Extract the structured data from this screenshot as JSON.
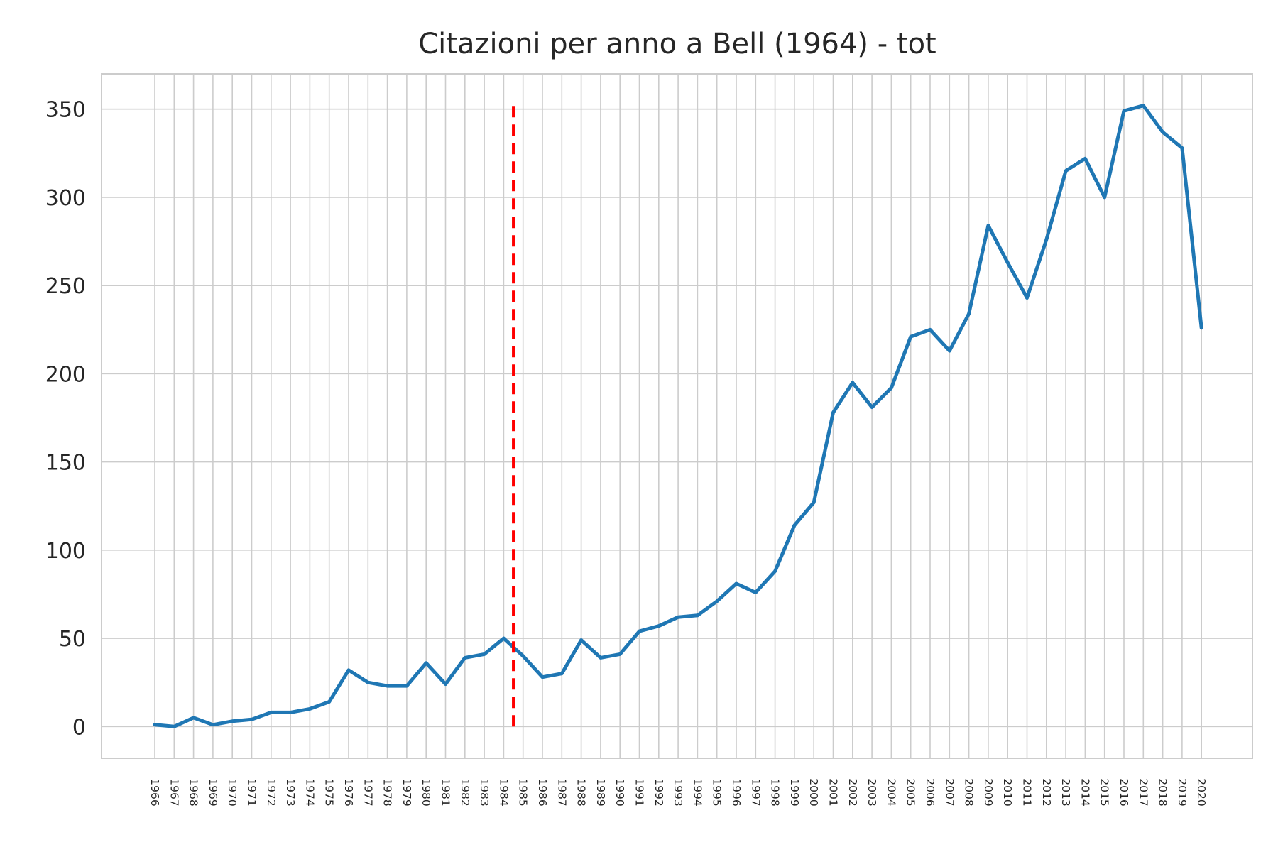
{
  "chart_data": {
    "type": "line",
    "title": "Citazioni per anno a Bell (1964) - tot",
    "xlabel": "",
    "ylabel": "",
    "categories": [
      "1966",
      "1967",
      "1968",
      "1969",
      "1970",
      "1971",
      "1972",
      "1973",
      "1974",
      "1975",
      "1976",
      "1977",
      "1978",
      "1979",
      "1980",
      "1981",
      "1982",
      "1983",
      "1984",
      "1985",
      "1986",
      "1987",
      "1988",
      "1989",
      "1990",
      "1991",
      "1992",
      "1993",
      "1994",
      "1995",
      "1996",
      "1997",
      "1998",
      "1999",
      "2000",
      "2001",
      "2002",
      "2003",
      "2004",
      "2005",
      "2006",
      "2007",
      "2008",
      "2009",
      "2010",
      "2011",
      "2012",
      "2013",
      "2014",
      "2015",
      "2016",
      "2017",
      "2018",
      "2019",
      "2020"
    ],
    "values": [
      1,
      0,
      5,
      1,
      3,
      4,
      8,
      8,
      10,
      14,
      32,
      25,
      23,
      23,
      36,
      24,
      39,
      41,
      50,
      40,
      28,
      30,
      49,
      39,
      41,
      54,
      57,
      62,
      63,
      71,
      81,
      76,
      88,
      114,
      127,
      178,
      195,
      181,
      192,
      221,
      225,
      213,
      234,
      284,
      263,
      243,
      276,
      315,
      322,
      300,
      349,
      352,
      337,
      328,
      226
    ],
    "ylim": [
      -18,
      370
    ],
    "yticks": [
      0,
      50,
      100,
      150,
      200,
      250,
      300,
      350
    ],
    "grid": true,
    "line_color": "#1f77b4",
    "vline": {
      "x": 1984.5,
      "ymin": 0,
      "ymax": 352,
      "color": "#ff0000",
      "style": "dashed"
    }
  }
}
